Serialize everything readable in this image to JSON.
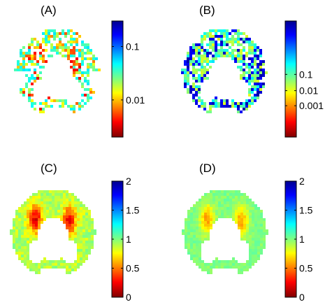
{
  "panels": [
    {
      "id": "A",
      "label": "(A)",
      "scale": "log",
      "style": "sparse",
      "colorbar": {
        "ticks": [
          "0.1",
          "0.01"
        ],
        "tick_pos": [
          0.22,
          0.68
        ]
      }
    },
    {
      "id": "B",
      "label": "(B)",
      "scale": "log",
      "style": "dense-edge",
      "colorbar": {
        "ticks": [
          "0.1",
          "0.01",
          "0.001"
        ],
        "tick_pos": [
          0.46,
          0.6,
          0.73
        ]
      }
    },
    {
      "id": "C",
      "label": "(C)",
      "scale": "linear",
      "style": "filled-hot",
      "colorbar": {
        "ticks": [
          "2",
          "1.5",
          "1",
          "0.5",
          "0"
        ],
        "tick_pos": [
          0.0,
          0.25,
          0.5,
          0.75,
          1.0
        ]
      }
    },
    {
      "id": "D",
      "label": "(D)",
      "scale": "linear",
      "style": "filled-mild",
      "colorbar": {
        "ticks": [
          "2",
          "1.5",
          "1",
          "0.5",
          "0"
        ],
        "tick_pos": [
          0.0,
          0.25,
          0.5,
          0.75,
          1.0
        ]
      }
    }
  ],
  "colormap": "jet-reversed",
  "colors": {
    "background": "#ffffff",
    "text": "#000000"
  }
}
